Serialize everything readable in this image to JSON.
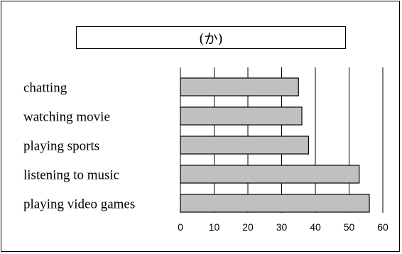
{
  "chart_data": {
    "type": "bar",
    "orientation": "horizontal",
    "title": "(か)",
    "categories": [
      "chatting",
      "watching movie",
      "playing sports",
      "listening to music",
      "playing video games"
    ],
    "values": [
      35,
      36,
      38,
      53,
      56
    ],
    "xlim": [
      0,
      60
    ],
    "xticks": [
      0,
      10,
      20,
      30,
      40,
      50,
      60
    ],
    "grid": true,
    "xlabel": "",
    "ylabel": "",
    "bar_color": "#c0c0c0",
    "bar_edge_color": "#000000"
  }
}
